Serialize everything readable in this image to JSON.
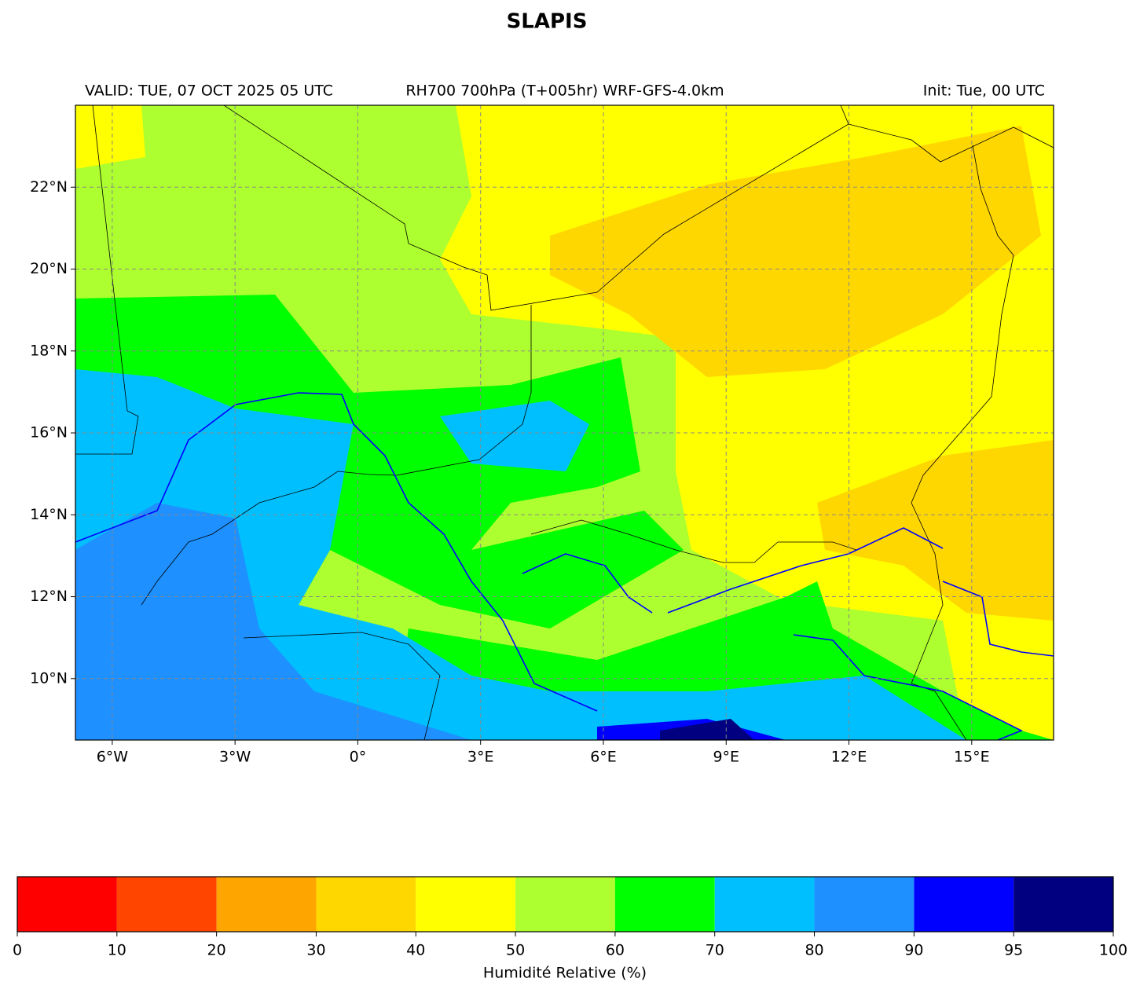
{
  "map": {
    "title": "SLAPIS",
    "subtitle_left": "VALID: TUE, 07 OCT 2025 05 UTC",
    "subtitle_center": "RH700 700hPa (T+005hr) WRF-GFS-4.0km",
    "subtitle_right": "Init: Tue, 00 UTC",
    "xlim": [
      -6.9,
      17
    ],
    "ylim": [
      8.5,
      24
    ],
    "xticks": [
      {
        "value": -6,
        "label": "6°W"
      },
      {
        "value": -3,
        "label": "3°W"
      },
      {
        "value": 0,
        "label": "0°"
      },
      {
        "value": 3,
        "label": "3°E"
      },
      {
        "value": 6,
        "label": "6°E"
      },
      {
        "value": 9,
        "label": "9°E"
      },
      {
        "value": 12,
        "label": "12°E"
      },
      {
        "value": 15,
        "label": "15°E"
      }
    ],
    "yticks": [
      {
        "value": 10,
        "label": "10°N"
      },
      {
        "value": 12,
        "label": "12°N"
      },
      {
        "value": 14,
        "label": "14°N"
      },
      {
        "value": 16,
        "label": "16°N"
      },
      {
        "value": 18,
        "label": "18°N"
      },
      {
        "value": 20,
        "label": "20°N"
      },
      {
        "value": 22,
        "label": "22°N"
      }
    ],
    "grid": true
  },
  "colorbar": {
    "label": "Humidité Relative (%)",
    "bounds": [
      0,
      10,
      20,
      30,
      40,
      50,
      60,
      70,
      80,
      90,
      95,
      100
    ],
    "colors": [
      "#ff0000",
      "#ff4500",
      "#ffa500",
      "#ffd700",
      "#ffff00",
      "#adff2f",
      "#00ff00",
      "#00bfff",
      "#1e90ff",
      "#0000ff",
      "#000080"
    ]
  }
}
